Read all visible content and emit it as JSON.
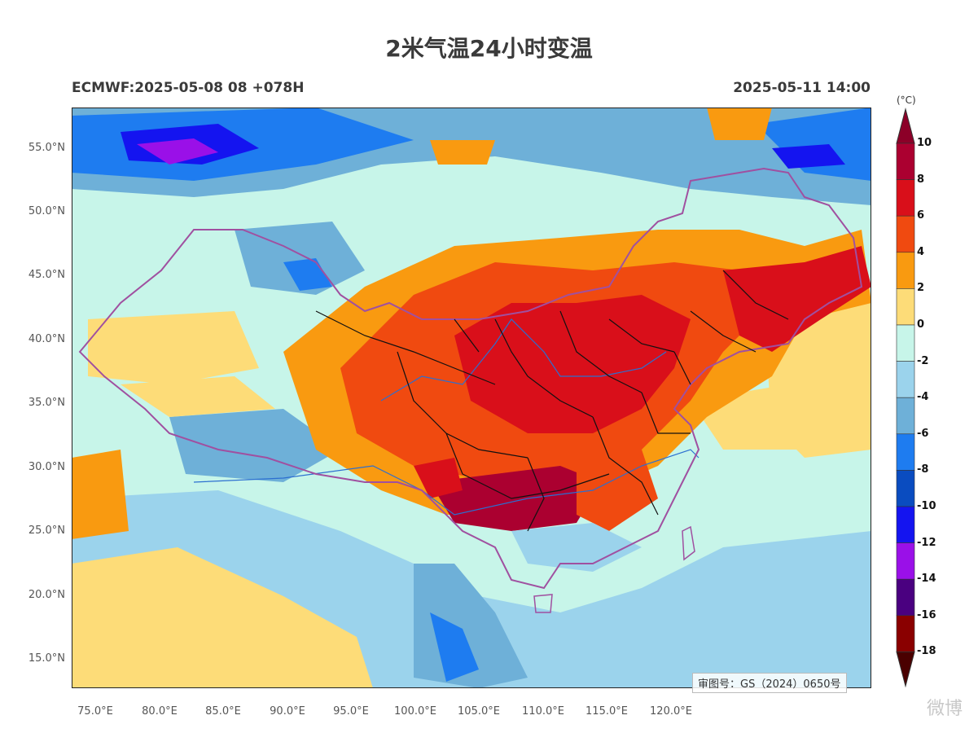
{
  "title": "2米气温24小时变温",
  "subtitle_left": "ECMWF:2025-05-08 08 +078H",
  "subtitle_right": "2025-05-11 14:00",
  "approval": "审图号：GS（2024）0650号",
  "watermark": "微博",
  "lat_labels": [
    "55.0°N",
    "50.0°N",
    "45.0°N",
    "40.0°N",
    "35.0°N",
    "30.0°N",
    "25.0°N",
    "20.0°N",
    "15.0°N"
  ],
  "lon_labels": [
    "75.0°E",
    "80.0°E",
    "85.0°E",
    "90.0°E",
    "95.0°E",
    "100.0°E",
    "105.0°E",
    "110.0°E",
    "115.0°E",
    "120.0°E"
  ],
  "colorbar": {
    "unit": "(°C)",
    "labels": [
      "10",
      "8",
      "6",
      "4",
      "2",
      "0",
      "-2",
      "-4",
      "-6",
      "-8",
      "-10",
      "-12",
      "-14",
      "-16",
      "-18"
    ],
    "colors": [
      "#ab0030",
      "#d90f1a",
      "#f04a10",
      "#f99a10",
      "#fddc78",
      "#c7f5e9",
      "#9bd3ec",
      "#6eb0d8",
      "#1e7cf0",
      "#0a4cc0",
      "#1414f0",
      "#9a10e8",
      "#4a0080",
      "#8a0000"
    ],
    "top_color": "#8c0028",
    "bottom_color": "#4a0000"
  }
}
